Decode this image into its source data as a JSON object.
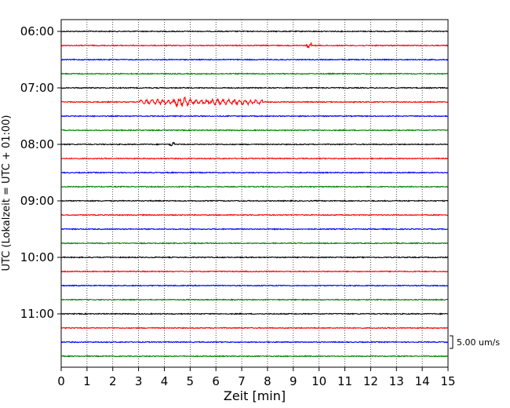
{
  "chart_data": {
    "type": "line",
    "title": "",
    "xlabel": "Zeit  [min]",
    "ylabel": "UTC (Lokalzeit = UTC + 01:00)",
    "xlim": [
      0,
      15
    ],
    "x_ticks": [
      0,
      1,
      2,
      3,
      4,
      5,
      6,
      7,
      8,
      9,
      10,
      11,
      12,
      13,
      14,
      15
    ],
    "x_grid": "dotted vertical lines at each minute",
    "trace_interval_min": 15,
    "hour_labels": [
      "06:00",
      "07:00",
      "08:00",
      "09:00",
      "10:00",
      "11:00"
    ],
    "trace_colors": [
      "#000000",
      "#ff0000",
      "#0000ff",
      "#008000"
    ],
    "scale_bar": {
      "label": "5.00 um/s",
      "value_um_s": 5.0
    },
    "events": [
      {
        "trace_start": "07:15",
        "from_min": 3.0,
        "to_min": 7.8,
        "description": "elevated oscillation"
      },
      {
        "trace_start": "07:15",
        "from_min": 4.4,
        "to_min": 4.9,
        "description": "peak"
      },
      {
        "trace_start": "08:00",
        "from_min": 4.2,
        "to_min": 4.4,
        "description": "spike"
      },
      {
        "trace_start": "06:15",
        "from_min": 9.5,
        "to_min": 9.7,
        "description": "spike"
      }
    ],
    "series": [
      {
        "start": "06:00",
        "color": "#000000"
      },
      {
        "start": "06:15",
        "color": "#ff0000"
      },
      {
        "start": "06:30",
        "color": "#0000ff"
      },
      {
        "start": "06:45",
        "color": "#008000"
      },
      {
        "start": "07:00",
        "color": "#000000"
      },
      {
        "start": "07:15",
        "color": "#ff0000"
      },
      {
        "start": "07:30",
        "color": "#0000ff"
      },
      {
        "start": "07:45",
        "color": "#008000"
      },
      {
        "start": "08:00",
        "color": "#000000"
      },
      {
        "start": "08:15",
        "color": "#ff0000"
      },
      {
        "start": "08:30",
        "color": "#0000ff"
      },
      {
        "start": "08:45",
        "color": "#008000"
      },
      {
        "start": "09:00",
        "color": "#000000"
      },
      {
        "start": "09:15",
        "color": "#ff0000"
      },
      {
        "start": "09:30",
        "color": "#0000ff"
      },
      {
        "start": "09:45",
        "color": "#008000"
      },
      {
        "start": "10:00",
        "color": "#000000"
      },
      {
        "start": "10:15",
        "color": "#ff0000"
      },
      {
        "start": "10:30",
        "color": "#0000ff"
      },
      {
        "start": "10:45",
        "color": "#008000"
      },
      {
        "start": "11:00",
        "color": "#000000"
      },
      {
        "start": "11:15",
        "color": "#ff0000"
      },
      {
        "start": "11:30",
        "color": "#0000ff"
      },
      {
        "start": "11:45",
        "color": "#008000"
      }
    ]
  }
}
